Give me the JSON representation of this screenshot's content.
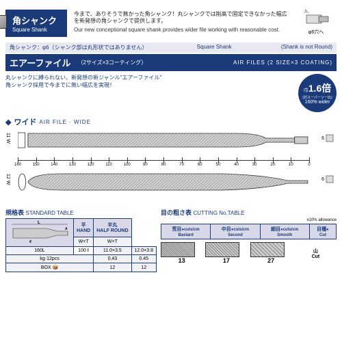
{
  "header": {
    "badge_jp": "角シャンク",
    "badge_en": "Square Shank",
    "desc_jp": "今まで、ありそうで無かった角シャンク！丸シャンクでは削高で固定できなかった幅広を新発想の角シャンクで提供します。",
    "desc_en": "Our new conceptional square shank provides wider file working with reasonable cost.",
    "hole_dim": "φ6穴へ",
    "arrow_dim": "6"
  },
  "subbar": {
    "left": "角シャンク：φ6（シャンク部は丸形状ではありません）",
    "mid": "Square Shank",
    "right": "(Shank is not Round)"
  },
  "titlebar": {
    "main": "エアーファイル",
    "sub": "（2サイズ×3コーティング）",
    "right": "AIR FILES (2 SIZE×3 COATING)"
  },
  "intro": {
    "l1": "丸シャンクに縛られない、新発想の新ジャンル\"エアーファイル\"",
    "l2": "角シャンク採用で今までに無い幅広を実現！",
    "badge_top": "巾",
    "badge_big": "1.6倍",
    "badge_mid": "(対スーパーソー比)",
    "badge_bot": "160% wider"
  },
  "wide": {
    "title_jp": "ワイド",
    "title_en": "AIR FILE · WIDE"
  },
  "diagram": {
    "left1": "11 W",
    "left2": "12 W",
    "end_dim": "6",
    "ruler_labels": [
      "160",
      "150",
      "140",
      "130",
      "120",
      "110",
      "100",
      "90",
      "80",
      "70",
      "60",
      "50",
      "40",
      "30",
      "20",
      "10",
      "0"
    ]
  },
  "std_table": {
    "title_jp": "規格表",
    "title_en": "STANDARD TABLE",
    "col_hand_jp": "平",
    "col_hand_en": "HAND",
    "col_half_jp": "半丸",
    "col_half_en": "HALF ROUND",
    "wxt": "W×T",
    "row_l": "160L",
    "row_l2": "100 ℓ",
    "hand_wxt": "11.0×3.5",
    "half_wxt": "12.0×3.8",
    "kg_label": "kg·12pcs",
    "hand_kg": "0.43",
    "half_kg": "0.45",
    "box_label": "BOX",
    "hand_box": "12",
    "half_box": "12"
  },
  "cut_table": {
    "title_jp": "目の粗さ表",
    "title_en": "CUTTING No.TABLE",
    "allowance": "±10% allowance",
    "cols": [
      {
        "jp": "荒目",
        "en": "Bastard",
        "unit": "cuts/cm"
      },
      {
        "jp": "中目",
        "en": "Second",
        "unit": "cuts/cm"
      },
      {
        "jp": "細目",
        "en": "Smooth",
        "unit": "cuts/cm"
      },
      {
        "jp": "目種",
        "en": "Cut",
        "unit": ""
      }
    ],
    "vals": [
      "13",
      "17",
      "27"
    ],
    "cut_jp": "山",
    "cut_en": "Cut"
  },
  "colors": {
    "navy": "#1a3a7a",
    "bg": "#ffffff",
    "cell": "#f0f0f5",
    "hdr": "#d8d8e8"
  }
}
